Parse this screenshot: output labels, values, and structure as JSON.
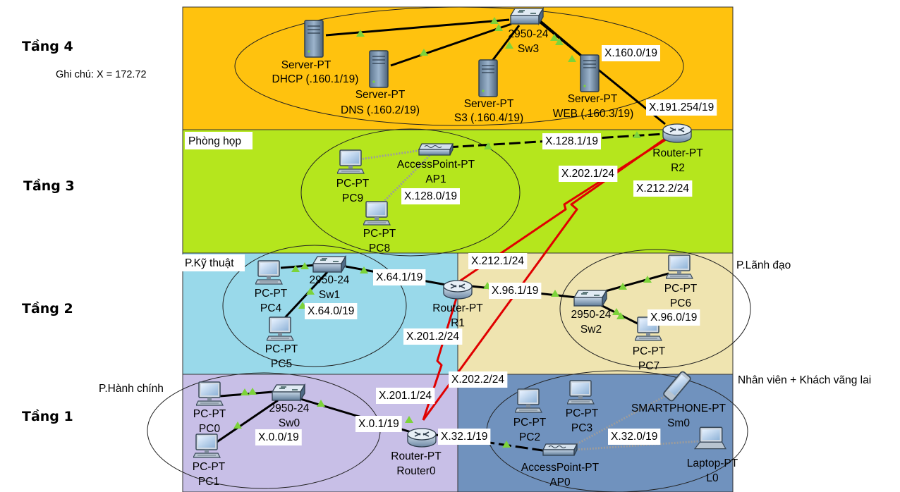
{
  "floors": [
    "Tầng 4",
    "Tầng 3",
    "Tầng 2",
    "Tầng 1"
  ],
  "note": "Ghi chú: X = 172.72",
  "zones": {
    "meeting": "Phòng họp",
    "tech": "P.Kỹ thuật",
    "leader": "P.Lãnh đạo",
    "admin": "P.Hành chính",
    "guest": "Nhân viên + Khách vãng lai"
  },
  "devices": {
    "dhcp": {
      "type": "Server-PT",
      "name": "DHCP (.160.1/19)"
    },
    "dns": {
      "type": "Server-PT",
      "name": "DNS (.160.2/19)"
    },
    "s3": {
      "type": "Server-PT",
      "name": "S3 (.160.4/19)"
    },
    "web": {
      "type": "Server-PT",
      "name": "WEB (.160.3/19)"
    },
    "sw3": {
      "type": "2950-24",
      "name": "Sw3"
    },
    "r2": {
      "type": "Router-PT",
      "name": "R2"
    },
    "ap1": {
      "type": "AccessPoint-PT",
      "name": "AP1"
    },
    "pc9": {
      "type": "PC-PT",
      "name": "PC9"
    },
    "pc8": {
      "type": "PC-PT",
      "name": "PC8"
    },
    "pc4": {
      "type": "PC-PT",
      "name": "PC4"
    },
    "pc5": {
      "type": "PC-PT",
      "name": "PC5"
    },
    "sw1": {
      "type": "2950-24",
      "name": "Sw1"
    },
    "r1": {
      "type": "Router-PT",
      "name": "R1"
    },
    "sw2": {
      "type": "2950-24",
      "name": "Sw2"
    },
    "pc6": {
      "type": "PC-PT",
      "name": "PC6"
    },
    "pc7": {
      "type": "PC-PT",
      "name": "PC7"
    },
    "pc0": {
      "type": "PC-PT",
      "name": "PC0"
    },
    "pc1": {
      "type": "PC-PT",
      "name": "PC1"
    },
    "sw0": {
      "type": "2950-24",
      "name": "Sw0"
    },
    "router0": {
      "type": "Router-PT",
      "name": "Router0"
    },
    "pc2": {
      "type": "PC-PT",
      "name": "PC2"
    },
    "pc3": {
      "type": "PC-PT",
      "name": "PC3"
    },
    "ap0": {
      "type": "AccessPoint-PT",
      "name": "AP0"
    },
    "sm0": {
      "type": "SMARTPHONE-PT",
      "name": "Sm0"
    },
    "l0": {
      "type": "Laptop-PT",
      "name": "L0"
    }
  },
  "ip_labels": {
    "web_net": "X.160.0/19",
    "r2_web": "X.191.254/19",
    "r2_ap1": "X.128.1/19",
    "ap1_net": "X.128.0/19",
    "r2_s0": "X.202.1/24",
    "r2_s1": "X.212.2/24",
    "r1_s1": "X.212.1/24",
    "r1_sw1": "X.64.1/19",
    "sw1_net": "X.64.0/19",
    "r1_sw2": "X.96.1/19",
    "sw2_net": "X.96.0/19",
    "r1_s0": "X.201.2/24",
    "router0_s2": "X.202.2/24",
    "router0_s1": "X.201.1/24",
    "router0_sw0": "X.0.1/19",
    "sw0_net": "X.0.0/19",
    "router0_ap0": "X.32.1/19",
    "ap0_net": "X.32.0/19"
  },
  "colors": {
    "floor4": "#FFC20E",
    "floor3": "#B5E61D",
    "floor2_left": "#99D9EA",
    "floor2_right": "#EFE4B0",
    "floor1_left": "#C8BFE7",
    "floor1_right": "#7092BE",
    "serial_link": "#E00000",
    "link_light": "#7CD33A"
  }
}
